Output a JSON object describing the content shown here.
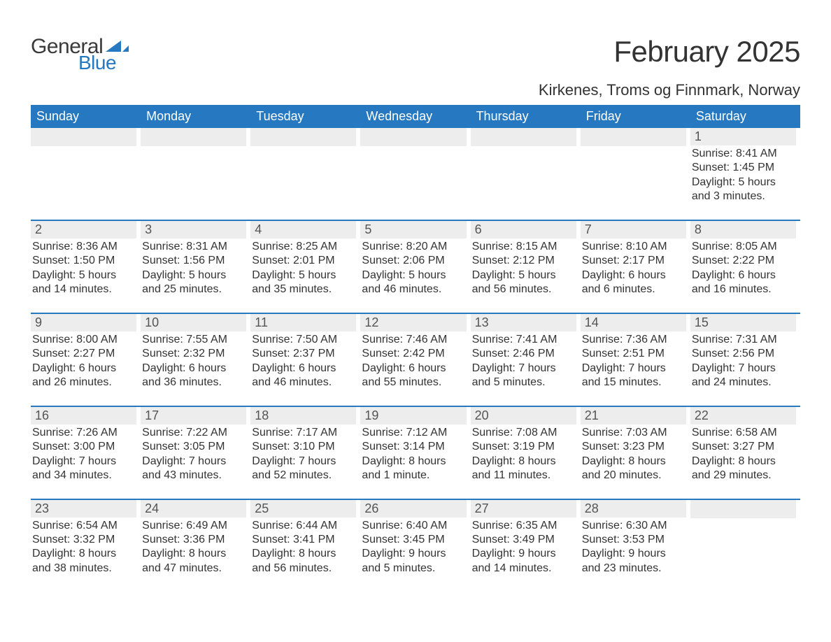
{
  "brand": {
    "word1": "General",
    "word2": "Blue",
    "accent_color": "#2679c0",
    "text_color": "#3a3a3a"
  },
  "title": "February 2025",
  "location": "Kirkenes, Troms og Finnmark, Norway",
  "colors": {
    "header_bg": "#2679c0",
    "header_text": "#ffffff",
    "daynum_bg": "#ededed",
    "body_text": "#333333",
    "page_bg": "#ffffff",
    "rule": "#2679c0"
  },
  "typography": {
    "title_fontsize": 42,
    "location_fontsize": 22,
    "weekday_fontsize": 18,
    "daynum_fontsize": 18,
    "body_fontsize": 16
  },
  "weekdays": [
    "Sunday",
    "Monday",
    "Tuesday",
    "Wednesday",
    "Thursday",
    "Friday",
    "Saturday"
  ],
  "weeks": [
    [
      {
        "n": "",
        "sunrise": "",
        "sunset": "",
        "daylight": ""
      },
      {
        "n": "",
        "sunrise": "",
        "sunset": "",
        "daylight": ""
      },
      {
        "n": "",
        "sunrise": "",
        "sunset": "",
        "daylight": ""
      },
      {
        "n": "",
        "sunrise": "",
        "sunset": "",
        "daylight": ""
      },
      {
        "n": "",
        "sunrise": "",
        "sunset": "",
        "daylight": ""
      },
      {
        "n": "",
        "sunrise": "",
        "sunset": "",
        "daylight": ""
      },
      {
        "n": "1",
        "sunrise": "Sunrise: 8:41 AM",
        "sunset": "Sunset: 1:45 PM",
        "daylight": "Daylight: 5 hours and 3 minutes."
      }
    ],
    [
      {
        "n": "2",
        "sunrise": "Sunrise: 8:36 AM",
        "sunset": "Sunset: 1:50 PM",
        "daylight": "Daylight: 5 hours and 14 minutes."
      },
      {
        "n": "3",
        "sunrise": "Sunrise: 8:31 AM",
        "sunset": "Sunset: 1:56 PM",
        "daylight": "Daylight: 5 hours and 25 minutes."
      },
      {
        "n": "4",
        "sunrise": "Sunrise: 8:25 AM",
        "sunset": "Sunset: 2:01 PM",
        "daylight": "Daylight: 5 hours and 35 minutes."
      },
      {
        "n": "5",
        "sunrise": "Sunrise: 8:20 AM",
        "sunset": "Sunset: 2:06 PM",
        "daylight": "Daylight: 5 hours and 46 minutes."
      },
      {
        "n": "6",
        "sunrise": "Sunrise: 8:15 AM",
        "sunset": "Sunset: 2:12 PM",
        "daylight": "Daylight: 5 hours and 56 minutes."
      },
      {
        "n": "7",
        "sunrise": "Sunrise: 8:10 AM",
        "sunset": "Sunset: 2:17 PM",
        "daylight": "Daylight: 6 hours and 6 minutes."
      },
      {
        "n": "8",
        "sunrise": "Sunrise: 8:05 AM",
        "sunset": "Sunset: 2:22 PM",
        "daylight": "Daylight: 6 hours and 16 minutes."
      }
    ],
    [
      {
        "n": "9",
        "sunrise": "Sunrise: 8:00 AM",
        "sunset": "Sunset: 2:27 PM",
        "daylight": "Daylight: 6 hours and 26 minutes."
      },
      {
        "n": "10",
        "sunrise": "Sunrise: 7:55 AM",
        "sunset": "Sunset: 2:32 PM",
        "daylight": "Daylight: 6 hours and 36 minutes."
      },
      {
        "n": "11",
        "sunrise": "Sunrise: 7:50 AM",
        "sunset": "Sunset: 2:37 PM",
        "daylight": "Daylight: 6 hours and 46 minutes."
      },
      {
        "n": "12",
        "sunrise": "Sunrise: 7:46 AM",
        "sunset": "Sunset: 2:42 PM",
        "daylight": "Daylight: 6 hours and 55 minutes."
      },
      {
        "n": "13",
        "sunrise": "Sunrise: 7:41 AM",
        "sunset": "Sunset: 2:46 PM",
        "daylight": "Daylight: 7 hours and 5 minutes."
      },
      {
        "n": "14",
        "sunrise": "Sunrise: 7:36 AM",
        "sunset": "Sunset: 2:51 PM",
        "daylight": "Daylight: 7 hours and 15 minutes."
      },
      {
        "n": "15",
        "sunrise": "Sunrise: 7:31 AM",
        "sunset": "Sunset: 2:56 PM",
        "daylight": "Daylight: 7 hours and 24 minutes."
      }
    ],
    [
      {
        "n": "16",
        "sunrise": "Sunrise: 7:26 AM",
        "sunset": "Sunset: 3:00 PM",
        "daylight": "Daylight: 7 hours and 34 minutes."
      },
      {
        "n": "17",
        "sunrise": "Sunrise: 7:22 AM",
        "sunset": "Sunset: 3:05 PM",
        "daylight": "Daylight: 7 hours and 43 minutes."
      },
      {
        "n": "18",
        "sunrise": "Sunrise: 7:17 AM",
        "sunset": "Sunset: 3:10 PM",
        "daylight": "Daylight: 7 hours and 52 minutes."
      },
      {
        "n": "19",
        "sunrise": "Sunrise: 7:12 AM",
        "sunset": "Sunset: 3:14 PM",
        "daylight": "Daylight: 8 hours and 1 minute."
      },
      {
        "n": "20",
        "sunrise": "Sunrise: 7:08 AM",
        "sunset": "Sunset: 3:19 PM",
        "daylight": "Daylight: 8 hours and 11 minutes."
      },
      {
        "n": "21",
        "sunrise": "Sunrise: 7:03 AM",
        "sunset": "Sunset: 3:23 PM",
        "daylight": "Daylight: 8 hours and 20 minutes."
      },
      {
        "n": "22",
        "sunrise": "Sunrise: 6:58 AM",
        "sunset": "Sunset: 3:27 PM",
        "daylight": "Daylight: 8 hours and 29 minutes."
      }
    ],
    [
      {
        "n": "23",
        "sunrise": "Sunrise: 6:54 AM",
        "sunset": "Sunset: 3:32 PM",
        "daylight": "Daylight: 8 hours and 38 minutes."
      },
      {
        "n": "24",
        "sunrise": "Sunrise: 6:49 AM",
        "sunset": "Sunset: 3:36 PM",
        "daylight": "Daylight: 8 hours and 47 minutes."
      },
      {
        "n": "25",
        "sunrise": "Sunrise: 6:44 AM",
        "sunset": "Sunset: 3:41 PM",
        "daylight": "Daylight: 8 hours and 56 minutes."
      },
      {
        "n": "26",
        "sunrise": "Sunrise: 6:40 AM",
        "sunset": "Sunset: 3:45 PM",
        "daylight": "Daylight: 9 hours and 5 minutes."
      },
      {
        "n": "27",
        "sunrise": "Sunrise: 6:35 AM",
        "sunset": "Sunset: 3:49 PM",
        "daylight": "Daylight: 9 hours and 14 minutes."
      },
      {
        "n": "28",
        "sunrise": "Sunrise: 6:30 AM",
        "sunset": "Sunset: 3:53 PM",
        "daylight": "Daylight: 9 hours and 23 minutes."
      },
      {
        "n": "",
        "sunrise": "",
        "sunset": "",
        "daylight": ""
      }
    ]
  ]
}
